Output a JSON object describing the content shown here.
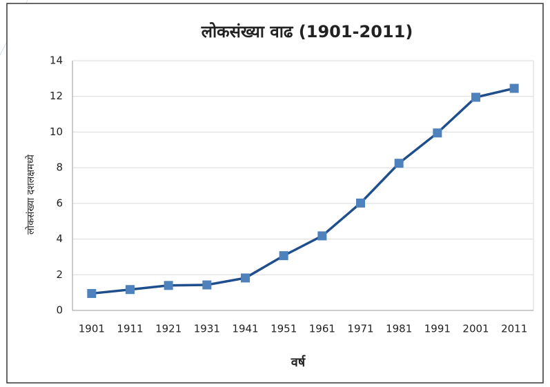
{
  "chart_data": {
    "type": "line",
    "title": "लोकसंख्या वाढ (1901-2011)",
    "x_label": "वर्ष",
    "y_label": "लोकसंख्या दशलक्षमध्ये",
    "categories": [
      "1901",
      "1911",
      "1921",
      "1931",
      "1941",
      "1951",
      "1961",
      "1971",
      "1981",
      "1991",
      "2001",
      "2011"
    ],
    "series": [
      {
        "name": "लोकसंख्या",
        "color": "#1f4e8c",
        "marker_color": "#4f81bd",
        "values": [
          0.95,
          1.17,
          1.4,
          1.43,
          1.82,
          3.07,
          4.18,
          6.02,
          8.25,
          9.95,
          11.95,
          12.45
        ]
      }
    ],
    "ylim": [
      0,
      14
    ],
    "yticks": [
      0,
      2,
      4,
      6,
      8,
      10,
      12,
      14
    ],
    "grid": true
  }
}
